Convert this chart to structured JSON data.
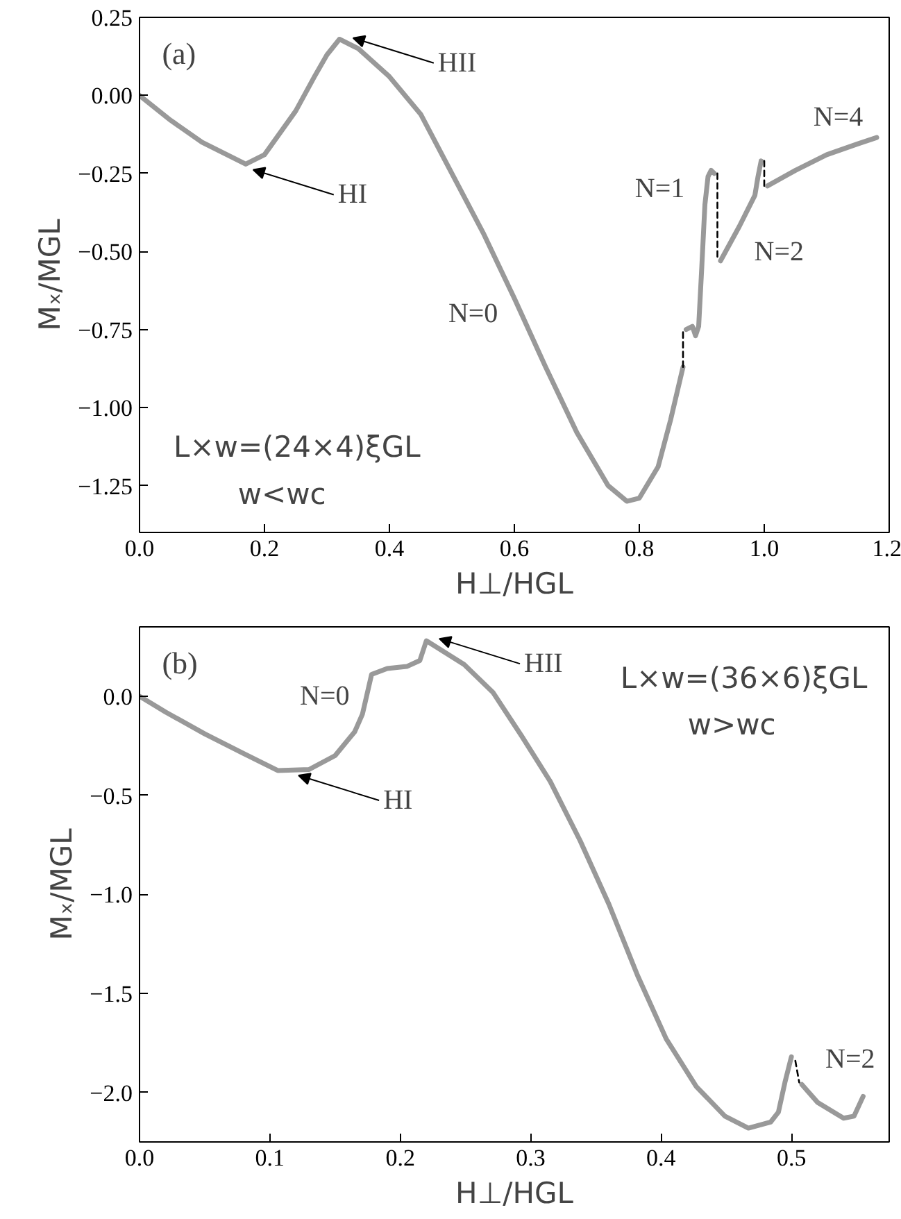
{
  "chart_data": [
    {
      "type": "line",
      "title": "(a)",
      "xlabel": "H⊥/HGL",
      "ylabel": "Mₓ/MGL",
      "xlim": [
        0,
        1.2
      ],
      "ylim": [
        -1.4,
        0.25
      ],
      "xticks": [
        {
          "value": 0,
          "label": "0.0"
        },
        {
          "value": 0.2,
          "label": "0.2"
        },
        {
          "value": 0.4,
          "label": "0.4"
        },
        {
          "value": 0.6,
          "label": "0.6"
        },
        {
          "value": 0.8,
          "label": "0.8"
        },
        {
          "value": 1.0,
          "label": "1.0"
        },
        {
          "value": 1.2,
          "label": "1.2"
        }
      ],
      "yticks": [
        {
          "value": 0.25,
          "label": "0.25"
        },
        {
          "value": 0,
          "label": "0.00"
        },
        {
          "value": -0.25,
          "label": "−0.25"
        },
        {
          "value": -0.5,
          "label": "−0.50"
        },
        {
          "value": -0.75,
          "label": "−0.75"
        },
        {
          "value": -1.0,
          "label": "−1.00"
        },
        {
          "value": -1.25,
          "label": "−1.25"
        }
      ],
      "grid": false,
      "series": [
        {
          "color": "#999999",
          "x": [
            0,
            0.05,
            0.1,
            0.15,
            0.17,
            0.2,
            0.25,
            0.28,
            0.3,
            0.32,
            0.35,
            0.4,
            0.45,
            0.5,
            0.55,
            0.6,
            0.65,
            0.7,
            0.75,
            0.78,
            0.8,
            0.83,
            0.85,
            0.87
          ],
          "values": [
            0,
            -0.08,
            -0.15,
            -0.2,
            -0.22,
            -0.19,
            -0.05,
            0.06,
            0.13,
            0.18,
            0.15,
            0.06,
            -0.06,
            -0.25,
            -0.44,
            -0.65,
            -0.87,
            -1.08,
            -1.25,
            -1.3,
            -1.29,
            -1.19,
            -1.04,
            -0.87
          ]
        },
        {
          "color": "#000000",
          "line_style": "dashed",
          "x": [
            0.87,
            0.87
          ],
          "values": [
            -0.87,
            -0.75
          ]
        },
        {
          "color": "#999999",
          "x": [
            0.875,
            0.885,
            0.89,
            0.895,
            0.9,
            0.905,
            0.91,
            0.915,
            0.92
          ],
          "values": [
            -0.75,
            -0.74,
            -0.77,
            -0.74,
            -0.55,
            -0.35,
            -0.26,
            -0.24,
            -0.25
          ]
        },
        {
          "color": "#000000",
          "line_style": "dashed",
          "x": [
            0.925,
            0.925
          ],
          "values": [
            -0.25,
            -0.53
          ]
        },
        {
          "color": "#999999",
          "x": [
            0.93,
            0.96,
            0.985,
            0.99,
            0.995
          ],
          "values": [
            -0.53,
            -0.42,
            -0.32,
            -0.26,
            -0.21
          ]
        },
        {
          "color": "#000000",
          "line_style": "dashed",
          "x": [
            1.0,
            1.0
          ],
          "values": [
            -0.21,
            -0.3
          ]
        },
        {
          "color": "#999999",
          "x": [
            1.005,
            1.05,
            1.1,
            1.15,
            1.18
          ],
          "values": [
            -0.29,
            -0.24,
            -0.19,
            -0.155,
            -0.135
          ]
        }
      ],
      "annotations": [
        {
          "text": "HI",
          "x": 0.182,
          "y": -0.238
        },
        {
          "text": "HII",
          "x": 0.342,
          "y": 0.184
        },
        "N=0",
        "N=1",
        "N=2",
        "N=4",
        "L×w=(24×4)ξGL",
        "w<wc"
      ]
    },
    {
      "type": "line",
      "title": "(b)",
      "xlabel": "H⊥/HGL",
      "ylabel": "Mₓ/MGL",
      "xlim": [
        0,
        0.575
      ],
      "ylim": [
        -2.25,
        0.35
      ],
      "xticks": [
        {
          "value": 0,
          "label": "0.0"
        },
        {
          "value": 0.1,
          "label": "0.1"
        },
        {
          "value": 0.2,
          "label": "0.2"
        },
        {
          "value": 0.3,
          "label": "0.3"
        },
        {
          "value": 0.4,
          "label": "0.4"
        },
        {
          "value": 0.5,
          "label": "0.5"
        }
      ],
      "yticks": [
        {
          "value": 0,
          "label": "0.0"
        },
        {
          "value": -0.5,
          "label": "−0.5"
        },
        {
          "value": -1.0,
          "label": "−1.0"
        },
        {
          "value": -1.5,
          "label": "−1.5"
        },
        {
          "value": -2.0,
          "label": "−2.0"
        }
      ],
      "grid": false,
      "series": [
        {
          "color": "#999999",
          "x": [
            0,
            0.02,
            0.05,
            0.08,
            0.106,
            0.13,
            0.15,
            0.165,
            0.171,
            0.178,
            0.19,
            0.205,
            0.215,
            0.22,
            0.249,
            0.271,
            0.293,
            0.315,
            0.338,
            0.36,
            0.382,
            0.404,
            0.427,
            0.449,
            0.467,
            0.484,
            0.49,
            0.495,
            0.5
          ],
          "values": [
            0,
            -0.08,
            -0.19,
            -0.29,
            -0.375,
            -0.37,
            -0.3,
            -0.18,
            -0.09,
            0.11,
            0.14,
            0.15,
            0.18,
            0.28,
            0.16,
            0.02,
            -0.2,
            -0.43,
            -0.73,
            -1.05,
            -1.41,
            -1.73,
            -1.97,
            -2.12,
            -2.18,
            -2.15,
            -2.1,
            -1.95,
            -1.82
          ]
        },
        {
          "color": "#000000",
          "line_style": "dashed",
          "x": [
            0.503,
            0.506
          ],
          "values": [
            -1.84,
            -1.95
          ]
        },
        {
          "color": "#999999",
          "x": [
            0.508,
            0.52,
            0.54,
            0.548,
            0.555
          ],
          "values": [
            -1.96,
            -2.05,
            -2.13,
            -2.12,
            -2.02
          ]
        }
      ],
      "annotations": [
        {
          "text": "HI",
          "x": 0.122,
          "y": -0.4
        },
        {
          "text": "HII",
          "x": 0.23,
          "y": 0.29
        },
        "N=0",
        "N=2",
        "L×w=(36×6)ξGL",
        "w>wc"
      ]
    }
  ]
}
